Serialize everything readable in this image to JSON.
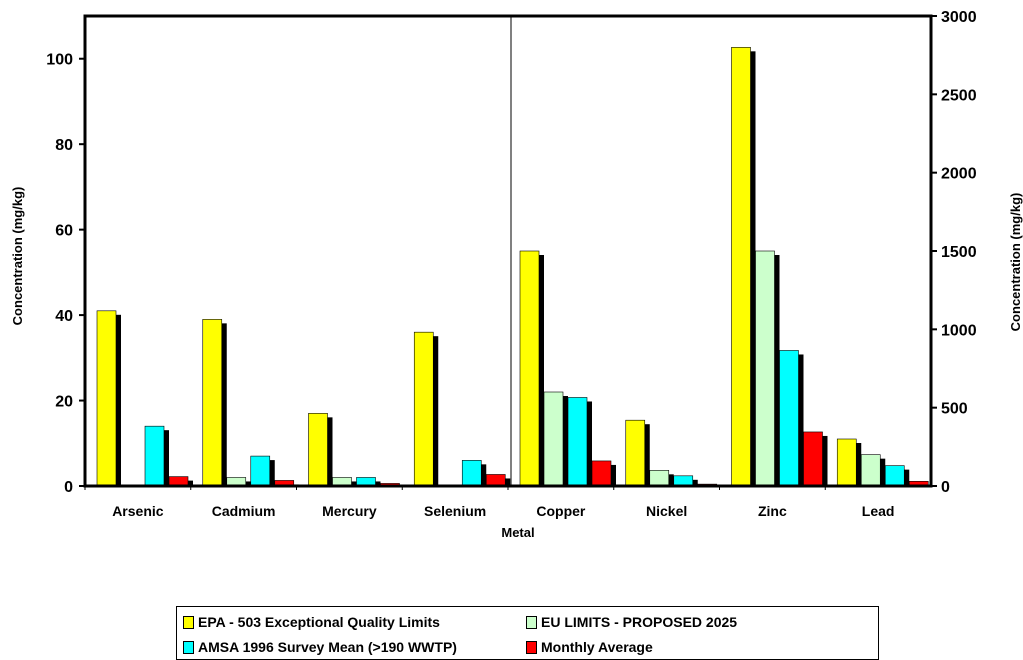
{
  "chart_data": {
    "type": "bar",
    "xlabel": "Metal",
    "ylabel_left": "Concentration (mg/kg)",
    "ylabel_right": "Concentration (mg/kg)",
    "left_axis": {
      "ylim": [
        0,
        110
      ],
      "ticks": [
        0,
        20,
        40,
        60,
        80,
        100
      ]
    },
    "right_axis": {
      "ylim": [
        0,
        3000
      ],
      "ticks": [
        0,
        500,
        1000,
        1500,
        2000,
        2500,
        3000
      ]
    },
    "categories": [
      "Arsenic",
      "Cadmium",
      "Mercury",
      "Selenium",
      "Copper",
      "Nickel",
      "Zinc",
      "Lead"
    ],
    "category_axis": [
      "left",
      "left",
      "left",
      "left",
      "right",
      "right",
      "right",
      "right"
    ],
    "series": [
      {
        "name": "EPA - 503 Exceptional Quality Limits",
        "color": "#ffff00",
        "values": [
          41,
          39,
          17,
          36,
          1500,
          420,
          2800,
          300
        ]
      },
      {
        "name": "EU LIMITS - PROPOSED 2025",
        "color": "#ccffcc",
        "values": [
          0,
          2,
          2,
          0,
          600,
          100,
          1500,
          200
        ]
      },
      {
        "name": "AMSA 1996 Survey Mean (>190 WWTP)",
        "color": "#00ffff",
        "values": [
          14,
          7,
          2,
          6,
          565,
          65,
          865,
          130
        ]
      },
      {
        "name": "Monthly Average",
        "color": "#ff0000",
        "values": [
          2.2,
          1.3,
          0.6,
          2.7,
          160,
          12,
          345,
          30
        ]
      }
    ],
    "grid": false,
    "legend_position": "bottom"
  }
}
